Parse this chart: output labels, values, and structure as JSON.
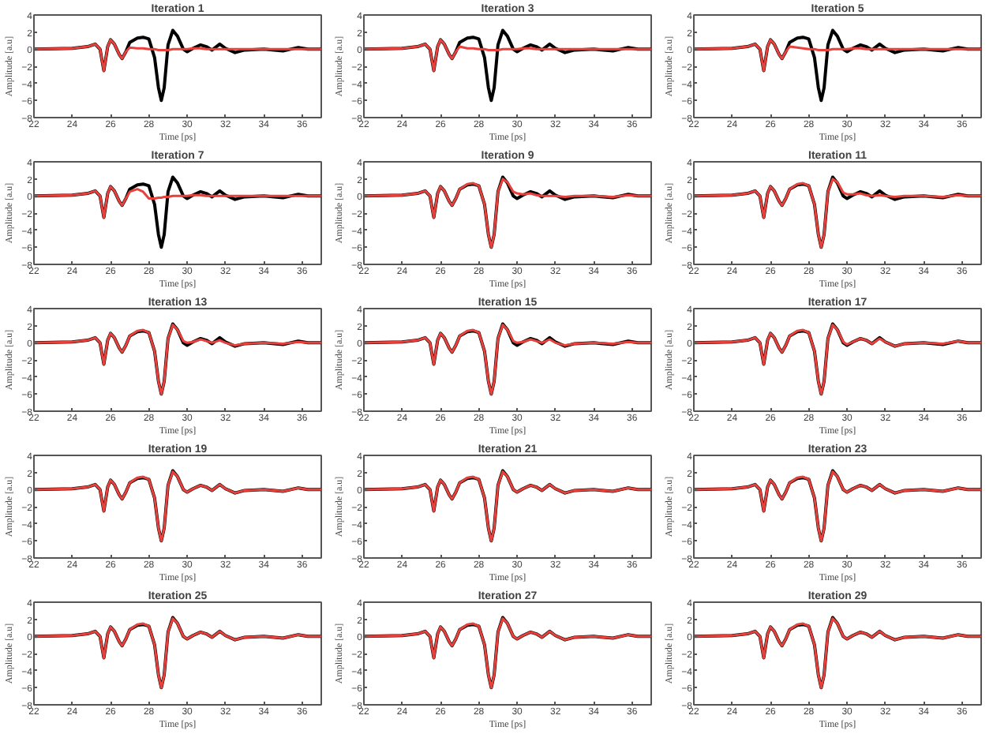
{
  "chart_data": [
    {
      "type": "line",
      "title": "Iteration 1",
      "xlabel": "Time [ps]",
      "ylabel": "Amplitude [a.u]",
      "xlim": [
        22,
        37
      ],
      "ylim": [
        -8,
        4
      ],
      "xticks": [
        22,
        24,
        26,
        28,
        30,
        32,
        34,
        36
      ],
      "yticks": [
        -8,
        -6,
        -4,
        -2,
        0,
        2,
        4
      ],
      "grid": false,
      "x": [
        22,
        24,
        24.8,
        25.2,
        25.45,
        25.65,
        25.85,
        26.0,
        26.2,
        26.45,
        26.6,
        26.8,
        27.0,
        27.4,
        27.7,
        28.0,
        28.3,
        28.5,
        28.65,
        28.8,
        29.0,
        29.25,
        29.5,
        29.8,
        30.0,
        30.3,
        30.7,
        31.0,
        31.3,
        31.7,
        32.0,
        32.5,
        33.0,
        34.0,
        35.0,
        35.8,
        36.3,
        37
      ],
      "series": [
        {
          "color": "#000000",
          "values": [
            0,
            0.1,
            0.3,
            0.6,
            0,
            -2.5,
            0.3,
            1.1,
            0.6,
            -0.6,
            -1.1,
            -0.3,
            0.8,
            1.3,
            1.4,
            1.2,
            -1.0,
            -4.5,
            -6.0,
            -4.5,
            0.5,
            2.2,
            1.5,
            0,
            -0.3,
            0.1,
            0.5,
            0.3,
            -0.1,
            0.6,
            0.1,
            -0.4,
            -0.1,
            0,
            -0.2,
            0.2,
            0,
            0
          ]
        },
        {
          "color": "#e8413c",
          "values": [
            0,
            0.1,
            0.3,
            0.6,
            0,
            -2.5,
            0.3,
            1.1,
            0.6,
            -0.6,
            -1.1,
            -0.3,
            0.2,
            0.1,
            0.1,
            0,
            0,
            -0.1,
            -0.1,
            -0.1,
            -0.1,
            0,
            0,
            0,
            0,
            0.1,
            0.1,
            0,
            0,
            0,
            0,
            0,
            0,
            0,
            0,
            0,
            0,
            0
          ]
        }
      ]
    },
    {
      "type": "line",
      "title": "Iteration 3",
      "xlabel": "Time [ps]",
      "ylabel": "Amplitude [a.u]",
      "xlim": [
        22,
        37
      ],
      "ylim": [
        -8,
        4
      ],
      "xticks": [
        22,
        24,
        26,
        28,
        30,
        32,
        34,
        36
      ],
      "yticks": [
        -8,
        -6,
        -4,
        -2,
        0,
        2,
        4
      ],
      "grid": false,
      "x": [
        22,
        24,
        24.8,
        25.2,
        25.45,
        25.65,
        25.85,
        26.0,
        26.2,
        26.45,
        26.6,
        26.8,
        27.0,
        27.4,
        27.7,
        28.0,
        28.3,
        28.5,
        28.65,
        28.8,
        29.0,
        29.25,
        29.5,
        29.8,
        30.0,
        30.3,
        30.7,
        31.0,
        31.3,
        31.7,
        32.0,
        32.5,
        33.0,
        34.0,
        35.0,
        35.8,
        36.3,
        37
      ],
      "series": [
        {
          "color": "#000000",
          "values": [
            0,
            0.1,
            0.3,
            0.6,
            0,
            -2.5,
            0.3,
            1.1,
            0.6,
            -0.6,
            -1.1,
            -0.3,
            0.8,
            1.3,
            1.4,
            1.2,
            -1.0,
            -4.5,
            -6.0,
            -4.5,
            0.5,
            2.2,
            1.5,
            0,
            -0.3,
            0.1,
            0.5,
            0.3,
            -0.1,
            0.6,
            0.1,
            -0.4,
            -0.1,
            0,
            -0.2,
            0.2,
            0,
            0
          ]
        },
        {
          "color": "#e8413c",
          "values": [
            0,
            0.1,
            0.3,
            0.6,
            0,
            -2.5,
            0.3,
            1.1,
            0.6,
            -0.6,
            -1.1,
            -0.3,
            0.3,
            0.1,
            0.1,
            0,
            0,
            -0.1,
            -0.1,
            -0.1,
            -0.1,
            0,
            0,
            0,
            0,
            0.1,
            0.1,
            0,
            0,
            0,
            0,
            0,
            0,
            0,
            0,
            0,
            0,
            0
          ]
        }
      ]
    },
    {
      "type": "line",
      "title": "Iteration 5",
      "xlabel": "Time [ps]",
      "ylabel": "Amplitude [a.u]",
      "xlim": [
        22,
        37
      ],
      "ylim": [
        -8,
        4
      ],
      "xticks": [
        22,
        24,
        26,
        28,
        30,
        32,
        34,
        36
      ],
      "yticks": [
        -8,
        -6,
        -4,
        -2,
        0,
        2,
        4
      ],
      "grid": false,
      "x": [
        22,
        24,
        24.8,
        25.2,
        25.45,
        25.65,
        25.85,
        26.0,
        26.2,
        26.45,
        26.6,
        26.8,
        27.0,
        27.4,
        27.7,
        28.0,
        28.3,
        28.5,
        28.65,
        28.8,
        29.0,
        29.25,
        29.5,
        29.8,
        30.0,
        30.3,
        30.7,
        31.0,
        31.3,
        31.7,
        32.0,
        32.5,
        33.0,
        34.0,
        35.0,
        35.8,
        36.3,
        37
      ],
      "series": [
        {
          "color": "#000000",
          "values": [
            0,
            0.1,
            0.3,
            0.6,
            0,
            -2.5,
            0.3,
            1.1,
            0.6,
            -0.6,
            -1.1,
            -0.3,
            0.8,
            1.3,
            1.4,
            1.2,
            -1.0,
            -4.5,
            -6.0,
            -4.5,
            0.5,
            2.2,
            1.5,
            0,
            -0.3,
            0.1,
            0.5,
            0.3,
            -0.1,
            0.6,
            0.1,
            -0.4,
            -0.1,
            0,
            -0.2,
            0.2,
            0,
            0
          ]
        },
        {
          "color": "#e8413c",
          "values": [
            0,
            0.1,
            0.3,
            0.6,
            0,
            -2.5,
            0.3,
            1.1,
            0.6,
            -0.6,
            -1.1,
            -0.3,
            0.3,
            0.2,
            0.1,
            0,
            0,
            -0.1,
            -0.1,
            -0.1,
            -0.1,
            0,
            0,
            0,
            0,
            0.1,
            0.1,
            0,
            0,
            0,
            0,
            0,
            0,
            0,
            0,
            0,
            0,
            0
          ]
        }
      ]
    },
    {
      "type": "line",
      "title": "Iteration 7",
      "xlabel": "Time [ps]",
      "ylabel": "Amplitude [a.u]",
      "xlim": [
        22,
        37
      ],
      "ylim": [
        -8,
        4
      ],
      "xticks": [
        22,
        24,
        26,
        28,
        30,
        32,
        34,
        36
      ],
      "yticks": [
        -8,
        -6,
        -4,
        -2,
        0,
        2,
        4
      ],
      "grid": false,
      "x": [
        22,
        24,
        24.8,
        25.2,
        25.45,
        25.65,
        25.85,
        26.0,
        26.2,
        26.45,
        26.6,
        26.8,
        27.0,
        27.4,
        27.7,
        28.0,
        28.3,
        28.5,
        28.65,
        28.8,
        29.0,
        29.25,
        29.5,
        29.8,
        30.0,
        30.3,
        30.7,
        31.0,
        31.3,
        31.7,
        32.0,
        32.5,
        33.0,
        34.0,
        35.0,
        35.8,
        36.3,
        37
      ],
      "series": [
        {
          "color": "#000000",
          "values": [
            0,
            0.1,
            0.3,
            0.6,
            0,
            -2.5,
            0.3,
            1.1,
            0.6,
            -0.6,
            -1.1,
            -0.3,
            0.8,
            1.3,
            1.4,
            1.2,
            -1.0,
            -4.5,
            -6.0,
            -4.5,
            0.5,
            2.2,
            1.5,
            0,
            -0.3,
            0.1,
            0.5,
            0.3,
            -0.1,
            0.6,
            0.1,
            -0.4,
            -0.1,
            0,
            -0.2,
            0.2,
            0,
            0
          ]
        },
        {
          "color": "#e8413c",
          "values": [
            0,
            0.1,
            0.3,
            0.6,
            0,
            -2.5,
            0.3,
            1.1,
            0.6,
            -0.6,
            -1.1,
            -0.3,
            0.5,
            0.8,
            0.5,
            -0.3,
            -0.3,
            -0.2,
            -0.2,
            -0.1,
            -0.1,
            0,
            0,
            0,
            0,
            0.1,
            0.1,
            0,
            0,
            0,
            0,
            0,
            0,
            0,
            0,
            0,
            0,
            0
          ]
        }
      ]
    },
    {
      "type": "line",
      "title": "Iteration 9",
      "xlabel": "Time [ps]",
      "ylabel": "Amplitude [a.u]",
      "xlim": [
        22,
        37
      ],
      "ylim": [
        -8,
        4
      ],
      "xticks": [
        22,
        24,
        26,
        28,
        30,
        32,
        34,
        36
      ],
      "yticks": [
        -8,
        -6,
        -4,
        -2,
        0,
        2,
        4
      ],
      "grid": false,
      "x": [
        22,
        24,
        24.8,
        25.2,
        25.45,
        25.65,
        25.85,
        26.0,
        26.2,
        26.45,
        26.6,
        26.8,
        27.0,
        27.4,
        27.7,
        28.0,
        28.3,
        28.5,
        28.65,
        28.8,
        29.0,
        29.25,
        29.5,
        29.8,
        30.0,
        30.3,
        30.7,
        31.0,
        31.3,
        31.7,
        32.0,
        32.5,
        33.0,
        34.0,
        35.0,
        35.8,
        36.3,
        37
      ],
      "series": [
        {
          "color": "#000000",
          "values": [
            0,
            0.1,
            0.3,
            0.6,
            0,
            -2.5,
            0.3,
            1.1,
            0.6,
            -0.6,
            -1.1,
            -0.3,
            0.8,
            1.3,
            1.4,
            1.2,
            -1.0,
            -4.5,
            -6.0,
            -4.5,
            0.5,
            2.2,
            1.5,
            0,
            -0.3,
            0.1,
            0.5,
            0.3,
            -0.1,
            0.6,
            0.1,
            -0.4,
            -0.1,
            0,
            -0.2,
            0.2,
            0,
            0
          ]
        },
        {
          "color": "#e8413c",
          "values": [
            0,
            0.1,
            0.3,
            0.6,
            0,
            -2.5,
            0.3,
            1.1,
            0.6,
            -0.6,
            -1.1,
            -0.3,
            0.8,
            1.4,
            1.5,
            1.2,
            -1.0,
            -4.5,
            -6.0,
            -4.5,
            0.5,
            2.0,
            1.6,
            0.5,
            0.3,
            0.2,
            0.3,
            0.1,
            0,
            0,
            0,
            -0.1,
            0,
            0,
            -0.1,
            0.1,
            0,
            0
          ]
        }
      ]
    },
    {
      "type": "line",
      "title": "Iteration 11",
      "xlabel": "Time [ps]",
      "ylabel": "Amplitude [a.u]",
      "xlim": [
        22,
        37
      ],
      "ylim": [
        -8,
        4
      ],
      "xticks": [
        22,
        24,
        26,
        28,
        30,
        32,
        34,
        36
      ],
      "yticks": [
        -8,
        -6,
        -4,
        -2,
        0,
        2,
        4
      ],
      "grid": false,
      "x": [
        22,
        24,
        24.8,
        25.2,
        25.45,
        25.65,
        25.85,
        26.0,
        26.2,
        26.45,
        26.6,
        26.8,
        27.0,
        27.4,
        27.7,
        28.0,
        28.3,
        28.5,
        28.65,
        28.8,
        29.0,
        29.25,
        29.5,
        29.8,
        30.0,
        30.3,
        30.7,
        31.0,
        31.3,
        31.7,
        32.0,
        32.5,
        33.0,
        34.0,
        35.0,
        35.8,
        36.3,
        37
      ],
      "series": [
        {
          "color": "#000000",
          "values": [
            0,
            0.1,
            0.3,
            0.6,
            0,
            -2.5,
            0.3,
            1.1,
            0.6,
            -0.6,
            -1.1,
            -0.3,
            0.8,
            1.3,
            1.4,
            1.2,
            -1.0,
            -4.5,
            -6.0,
            -4.5,
            0.5,
            2.2,
            1.5,
            0,
            -0.3,
            0.1,
            0.5,
            0.3,
            -0.1,
            0.6,
            0.1,
            -0.4,
            -0.1,
            0,
            -0.2,
            0.2,
            0,
            0
          ]
        },
        {
          "color": "#e8413c",
          "values": [
            0,
            0.1,
            0.3,
            0.6,
            0,
            -2.5,
            0.3,
            1.1,
            0.6,
            -0.6,
            -1.1,
            -0.3,
            0.8,
            1.4,
            1.5,
            1.2,
            -1.0,
            -4.5,
            -6.0,
            -4.5,
            0.5,
            2.0,
            1.6,
            0.4,
            0.2,
            0.2,
            0.3,
            0.1,
            0,
            0.1,
            0,
            -0.1,
            0,
            0,
            -0.1,
            0.1,
            0,
            0
          ]
        }
      ]
    },
    {
      "type": "line",
      "title": "Iteration 13",
      "xlabel": "Time [ps]",
      "ylabel": "Amplitude [a.u]",
      "xlim": [
        22,
        37
      ],
      "ylim": [
        -8,
        4
      ],
      "xticks": [
        22,
        24,
        26,
        28,
        30,
        32,
        34,
        36
      ],
      "yticks": [
        -8,
        -6,
        -4,
        -2,
        0,
        2,
        4
      ],
      "grid": false,
      "x": [
        22,
        24,
        24.8,
        25.2,
        25.45,
        25.65,
        25.85,
        26.0,
        26.2,
        26.45,
        26.6,
        26.8,
        27.0,
        27.4,
        27.7,
        28.0,
        28.3,
        28.5,
        28.65,
        28.8,
        29.0,
        29.25,
        29.5,
        29.8,
        30.0,
        30.3,
        30.7,
        31.0,
        31.3,
        31.7,
        32.0,
        32.5,
        33.0,
        34.0,
        35.0,
        35.8,
        36.3,
        37
      ],
      "series": [
        {
          "color": "#000000",
          "values": [
            0,
            0.1,
            0.3,
            0.6,
            0,
            -2.5,
            0.3,
            1.1,
            0.6,
            -0.6,
            -1.1,
            -0.3,
            0.8,
            1.3,
            1.4,
            1.2,
            -1.0,
            -4.5,
            -6.0,
            -4.5,
            0.5,
            2.2,
            1.5,
            0,
            -0.3,
            0.1,
            0.5,
            0.3,
            -0.1,
            0.6,
            0.1,
            -0.4,
            -0.1,
            0,
            -0.2,
            0.2,
            0,
            0
          ]
        },
        {
          "color": "#e8413c",
          "values": [
            0,
            0.1,
            0.3,
            0.6,
            0,
            -2.5,
            0.3,
            1.1,
            0.6,
            -0.6,
            -1.1,
            -0.3,
            0.8,
            1.4,
            1.5,
            1.2,
            -1.0,
            -4.5,
            -6.0,
            -4.5,
            0.5,
            2.1,
            1.5,
            0.2,
            0,
            0.1,
            0.4,
            0.2,
            0,
            0.3,
            0,
            -0.3,
            -0.1,
            0,
            -0.1,
            0.1,
            0,
            0
          ]
        }
      ]
    },
    {
      "type": "line",
      "title": "Iteration 15",
      "xlabel": "Time [ps]",
      "ylabel": "Amplitude [a.u]",
      "xlim": [
        22,
        37
      ],
      "ylim": [
        -8,
        4
      ],
      "xticks": [
        22,
        24,
        26,
        28,
        30,
        32,
        34,
        36
      ],
      "yticks": [
        -8,
        -6,
        -4,
        -2,
        0,
        2,
        4
      ],
      "grid": false,
      "x": [
        22,
        24,
        24.8,
        25.2,
        25.45,
        25.65,
        25.85,
        26.0,
        26.2,
        26.45,
        26.6,
        26.8,
        27.0,
        27.4,
        27.7,
        28.0,
        28.3,
        28.5,
        28.65,
        28.8,
        29.0,
        29.25,
        29.5,
        29.8,
        30.0,
        30.3,
        30.7,
        31.0,
        31.3,
        31.7,
        32.0,
        32.5,
        33.0,
        34.0,
        35.0,
        35.8,
        36.3,
        37
      ],
      "series": [
        {
          "color": "#000000",
          "values": [
            0,
            0.1,
            0.3,
            0.6,
            0,
            -2.5,
            0.3,
            1.1,
            0.6,
            -0.6,
            -1.1,
            -0.3,
            0.8,
            1.3,
            1.4,
            1.2,
            -1.0,
            -4.5,
            -6.0,
            -4.5,
            0.5,
            2.2,
            1.5,
            0,
            -0.3,
            0.1,
            0.5,
            0.3,
            -0.1,
            0.6,
            0.1,
            -0.4,
            -0.1,
            0,
            -0.2,
            0.2,
            0,
            0
          ]
        },
        {
          "color": "#e8413c",
          "values": [
            0,
            0.1,
            0.3,
            0.6,
            0,
            -2.5,
            0.3,
            1.1,
            0.6,
            -0.6,
            -1.1,
            -0.3,
            0.8,
            1.4,
            1.5,
            1.2,
            -1.0,
            -4.5,
            -6.0,
            -4.5,
            0.5,
            2.1,
            1.5,
            0.2,
            0,
            0.1,
            0.4,
            0.2,
            0,
            0.4,
            0,
            -0.3,
            -0.1,
            0,
            -0.1,
            0.1,
            0,
            0
          ]
        }
      ]
    },
    {
      "type": "line",
      "title": "Iteration 17",
      "xlabel": "Time [ps]",
      "ylabel": "Amplitude [a.u]",
      "xlim": [
        22,
        37
      ],
      "ylim": [
        -8,
        4
      ],
      "xticks": [
        22,
        24,
        26,
        28,
        30,
        32,
        34,
        36
      ],
      "yticks": [
        -8,
        -6,
        -4,
        -2,
        0,
        2,
        4
      ],
      "grid": false,
      "x": [
        22,
        24,
        24.8,
        25.2,
        25.45,
        25.65,
        25.85,
        26.0,
        26.2,
        26.45,
        26.6,
        26.8,
        27.0,
        27.4,
        27.7,
        28.0,
        28.3,
        28.5,
        28.65,
        28.8,
        29.0,
        29.25,
        29.5,
        29.8,
        30.0,
        30.3,
        30.7,
        31.0,
        31.3,
        31.7,
        32.0,
        32.5,
        33.0,
        34.0,
        35.0,
        35.8,
        36.3,
        37
      ],
      "series": [
        {
          "color": "#000000",
          "values": [
            0,
            0.1,
            0.3,
            0.6,
            0,
            -2.5,
            0.3,
            1.1,
            0.6,
            -0.6,
            -1.1,
            -0.3,
            0.8,
            1.3,
            1.4,
            1.2,
            -1.0,
            -4.5,
            -6.0,
            -4.5,
            0.5,
            2.2,
            1.5,
            0,
            -0.3,
            0.1,
            0.5,
            0.3,
            -0.1,
            0.6,
            0.1,
            -0.4,
            -0.1,
            0,
            -0.2,
            0.2,
            0,
            0
          ]
        },
        {
          "color": "#e8413c",
          "values": [
            0,
            0.1,
            0.3,
            0.6,
            0,
            -2.5,
            0.3,
            1.1,
            0.6,
            -0.6,
            -1.1,
            -0.3,
            0.8,
            1.4,
            1.5,
            1.2,
            -1.0,
            -4.5,
            -6.0,
            -4.5,
            0.5,
            2.1,
            1.5,
            0.1,
            -0.2,
            0.1,
            0.5,
            0.3,
            -0.1,
            0.5,
            0.1,
            -0.4,
            -0.1,
            0,
            -0.1,
            0.2,
            0,
            0
          ]
        }
      ]
    },
    {
      "type": "line",
      "title": "Iteration 19",
      "xlabel": "Time [ps]",
      "ylabel": "Amplitude [a.u]",
      "xlim": [
        22,
        37
      ],
      "ylim": [
        -8,
        4
      ],
      "xticks": [
        22,
        24,
        26,
        28,
        30,
        32,
        34,
        36
      ],
      "yticks": [
        -8,
        -6,
        -4,
        -2,
        0,
        2,
        4
      ],
      "grid": false,
      "x": [
        22,
        24,
        24.8,
        25.2,
        25.45,
        25.65,
        25.85,
        26.0,
        26.2,
        26.45,
        26.6,
        26.8,
        27.0,
        27.4,
        27.7,
        28.0,
        28.3,
        28.5,
        28.65,
        28.8,
        29.0,
        29.25,
        29.5,
        29.8,
        30.0,
        30.3,
        30.7,
        31.0,
        31.3,
        31.7,
        32.0,
        32.5,
        33.0,
        34.0,
        35.0,
        35.8,
        36.3,
        37
      ],
      "series": [
        {
          "color": "#000000",
          "values": [
            0,
            0.1,
            0.3,
            0.6,
            0,
            -2.5,
            0.3,
            1.1,
            0.6,
            -0.6,
            -1.1,
            -0.3,
            0.8,
            1.3,
            1.4,
            1.2,
            -1.0,
            -4.5,
            -6.0,
            -4.5,
            0.5,
            2.2,
            1.5,
            0,
            -0.3,
            0.1,
            0.5,
            0.3,
            -0.1,
            0.6,
            0.1,
            -0.4,
            -0.1,
            0,
            -0.2,
            0.2,
            0,
            0
          ]
        },
        {
          "color": "#e8413c",
          "values": [
            0,
            0.1,
            0.3,
            0.6,
            0,
            -2.5,
            0.3,
            1.1,
            0.6,
            -0.6,
            -1.1,
            -0.3,
            0.8,
            1.4,
            1.5,
            1.2,
            -1.0,
            -4.5,
            -6.0,
            -4.5,
            0.5,
            2.1,
            1.5,
            0,
            -0.3,
            0.1,
            0.5,
            0.3,
            -0.1,
            0.6,
            0.1,
            -0.4,
            -0.1,
            0,
            -0.2,
            0.2,
            0,
            0
          ]
        }
      ]
    },
    {
      "type": "line",
      "title": "Iteration 21",
      "xlabel": "Time [ps]",
      "ylabel": "Amplitude [a.u]",
      "xlim": [
        22,
        37
      ],
      "ylim": [
        -8,
        4
      ],
      "xticks": [
        22,
        24,
        26,
        28,
        30,
        32,
        34,
        36
      ],
      "yticks": [
        -8,
        -6,
        -4,
        -2,
        0,
        2,
        4
      ],
      "grid": false,
      "x": [
        22,
        24,
        24.8,
        25.2,
        25.45,
        25.65,
        25.85,
        26.0,
        26.2,
        26.45,
        26.6,
        26.8,
        27.0,
        27.4,
        27.7,
        28.0,
        28.3,
        28.5,
        28.65,
        28.8,
        29.0,
        29.25,
        29.5,
        29.8,
        30.0,
        30.3,
        30.7,
        31.0,
        31.3,
        31.7,
        32.0,
        32.5,
        33.0,
        34.0,
        35.0,
        35.8,
        36.3,
        37
      ],
      "series": [
        {
          "color": "#000000",
          "values": [
            0,
            0.1,
            0.3,
            0.6,
            0,
            -2.5,
            0.3,
            1.1,
            0.6,
            -0.6,
            -1.1,
            -0.3,
            0.8,
            1.3,
            1.4,
            1.2,
            -1.0,
            -4.5,
            -6.0,
            -4.5,
            0.5,
            2.2,
            1.5,
            0,
            -0.3,
            0.1,
            0.5,
            0.3,
            -0.1,
            0.6,
            0.1,
            -0.4,
            -0.1,
            0,
            -0.2,
            0.2,
            0,
            0
          ]
        },
        {
          "color": "#e8413c",
          "values": [
            0,
            0.1,
            0.3,
            0.6,
            0,
            -2.5,
            0.3,
            1.1,
            0.6,
            -0.6,
            -1.1,
            -0.3,
            0.8,
            1.4,
            1.5,
            1.2,
            -1.0,
            -4.5,
            -6.0,
            -4.5,
            0.5,
            2.1,
            1.5,
            0,
            -0.3,
            0.1,
            0.5,
            0.3,
            -0.1,
            0.6,
            0.1,
            -0.4,
            -0.1,
            0,
            -0.2,
            0.2,
            0,
            0
          ]
        }
      ]
    },
    {
      "type": "line",
      "title": "Iteration 23",
      "xlabel": "Time [ps]",
      "ylabel": "Amplitude [a.u]",
      "xlim": [
        22,
        37
      ],
      "ylim": [
        -8,
        4
      ],
      "xticks": [
        22,
        24,
        26,
        28,
        30,
        32,
        34,
        36
      ],
      "yticks": [
        -8,
        -6,
        -4,
        -2,
        0,
        2,
        4
      ],
      "grid": false,
      "x": [
        22,
        24,
        24.8,
        25.2,
        25.45,
        25.65,
        25.85,
        26.0,
        26.2,
        26.45,
        26.6,
        26.8,
        27.0,
        27.4,
        27.7,
        28.0,
        28.3,
        28.5,
        28.65,
        28.8,
        29.0,
        29.25,
        29.5,
        29.8,
        30.0,
        30.3,
        30.7,
        31.0,
        31.3,
        31.7,
        32.0,
        32.5,
        33.0,
        34.0,
        35.0,
        35.8,
        36.3,
        37
      ],
      "series": [
        {
          "color": "#000000",
          "values": [
            0,
            0.1,
            0.3,
            0.6,
            0,
            -2.5,
            0.3,
            1.1,
            0.6,
            -0.6,
            -1.1,
            -0.3,
            0.8,
            1.3,
            1.4,
            1.2,
            -1.0,
            -4.5,
            -6.0,
            -4.5,
            0.5,
            2.2,
            1.5,
            0,
            -0.3,
            0.1,
            0.5,
            0.3,
            -0.1,
            0.6,
            0.1,
            -0.4,
            -0.1,
            0,
            -0.2,
            0.2,
            0,
            0
          ]
        },
        {
          "color": "#e8413c",
          "values": [
            0,
            0.1,
            0.3,
            0.6,
            0,
            -2.5,
            0.3,
            1.1,
            0.6,
            -0.6,
            -1.1,
            -0.3,
            0.8,
            1.4,
            1.5,
            1.2,
            -1.0,
            -4.5,
            -6.0,
            -4.5,
            0.5,
            2.1,
            1.5,
            0,
            -0.3,
            0.1,
            0.5,
            0.3,
            -0.1,
            0.6,
            0.1,
            -0.4,
            -0.1,
            0,
            -0.2,
            0.2,
            0,
            0
          ]
        }
      ]
    },
    {
      "type": "line",
      "title": "Iteration 25",
      "xlabel": "Time [ps]",
      "ylabel": "Amplitude [a.u]",
      "xlim": [
        22,
        37
      ],
      "ylim": [
        -8,
        4
      ],
      "xticks": [
        22,
        24,
        26,
        28,
        30,
        32,
        34,
        36
      ],
      "yticks": [
        -8,
        -6,
        -4,
        -2,
        0,
        2,
        4
      ],
      "grid": false,
      "x": [
        22,
        24,
        24.8,
        25.2,
        25.45,
        25.65,
        25.85,
        26.0,
        26.2,
        26.45,
        26.6,
        26.8,
        27.0,
        27.4,
        27.7,
        28.0,
        28.3,
        28.5,
        28.65,
        28.8,
        29.0,
        29.25,
        29.5,
        29.8,
        30.0,
        30.3,
        30.7,
        31.0,
        31.3,
        31.7,
        32.0,
        32.5,
        33.0,
        34.0,
        35.0,
        35.8,
        36.3,
        37
      ],
      "series": [
        {
          "color": "#000000",
          "values": [
            0,
            0.1,
            0.3,
            0.6,
            0,
            -2.5,
            0.3,
            1.1,
            0.6,
            -0.6,
            -1.1,
            -0.3,
            0.8,
            1.3,
            1.4,
            1.2,
            -1.0,
            -4.5,
            -6.0,
            -4.5,
            0.5,
            2.2,
            1.5,
            0,
            -0.3,
            0.1,
            0.5,
            0.3,
            -0.1,
            0.6,
            0.1,
            -0.4,
            -0.1,
            0,
            -0.2,
            0.2,
            0,
            0
          ]
        },
        {
          "color": "#e8413c",
          "values": [
            0,
            0.1,
            0.3,
            0.6,
            0,
            -2.5,
            0.3,
            1.1,
            0.6,
            -0.6,
            -1.1,
            -0.3,
            0.8,
            1.4,
            1.5,
            1.2,
            -1.0,
            -4.5,
            -6.0,
            -4.5,
            0.5,
            2.1,
            1.5,
            0,
            -0.3,
            0.1,
            0.5,
            0.3,
            -0.1,
            0.6,
            0.1,
            -0.4,
            -0.1,
            0,
            -0.2,
            0.2,
            0,
            0
          ]
        }
      ]
    },
    {
      "type": "line",
      "title": "Iteration 27",
      "xlabel": "Time [ps]",
      "ylabel": "Amplitude [a.u]",
      "xlim": [
        22,
        37
      ],
      "ylim": [
        -8,
        4
      ],
      "xticks": [
        22,
        24,
        26,
        28,
        30,
        32,
        34,
        36
      ],
      "yticks": [
        -8,
        -6,
        -4,
        -2,
        0,
        2,
        4
      ],
      "grid": false,
      "x": [
        22,
        24,
        24.8,
        25.2,
        25.45,
        25.65,
        25.85,
        26.0,
        26.2,
        26.45,
        26.6,
        26.8,
        27.0,
        27.4,
        27.7,
        28.0,
        28.3,
        28.5,
        28.65,
        28.8,
        29.0,
        29.25,
        29.5,
        29.8,
        30.0,
        30.3,
        30.7,
        31.0,
        31.3,
        31.7,
        32.0,
        32.5,
        33.0,
        34.0,
        35.0,
        35.8,
        36.3,
        37
      ],
      "series": [
        {
          "color": "#000000",
          "values": [
            0,
            0.1,
            0.3,
            0.6,
            0,
            -2.5,
            0.3,
            1.1,
            0.6,
            -0.6,
            -1.1,
            -0.3,
            0.8,
            1.3,
            1.4,
            1.2,
            -1.0,
            -4.5,
            -6.0,
            -4.5,
            0.5,
            2.2,
            1.5,
            0,
            -0.3,
            0.1,
            0.5,
            0.3,
            -0.1,
            0.6,
            0.1,
            -0.4,
            -0.1,
            0,
            -0.2,
            0.2,
            0,
            0
          ]
        },
        {
          "color": "#e8413c",
          "values": [
            0,
            0.1,
            0.3,
            0.6,
            0,
            -2.5,
            0.3,
            1.1,
            0.6,
            -0.6,
            -1.1,
            -0.3,
            0.8,
            1.4,
            1.5,
            1.2,
            -1.0,
            -4.5,
            -6.0,
            -4.5,
            0.5,
            2.1,
            1.5,
            0,
            -0.3,
            0.1,
            0.5,
            0.3,
            -0.1,
            0.6,
            0.1,
            -0.4,
            -0.1,
            0,
            -0.2,
            0.2,
            0,
            0
          ]
        }
      ]
    },
    {
      "type": "line",
      "title": "Iteration 29",
      "xlabel": "Time [ps]",
      "ylabel": "Amplitude [a.u]",
      "xlim": [
        22,
        37
      ],
      "ylim": [
        -8,
        4
      ],
      "xticks": [
        22,
        24,
        26,
        28,
        30,
        32,
        34,
        36
      ],
      "yticks": [
        -8,
        -6,
        -4,
        -2,
        0,
        2,
        4
      ],
      "grid": false,
      "x": [
        22,
        24,
        24.8,
        25.2,
        25.45,
        25.65,
        25.85,
        26.0,
        26.2,
        26.45,
        26.6,
        26.8,
        27.0,
        27.4,
        27.7,
        28.0,
        28.3,
        28.5,
        28.65,
        28.8,
        29.0,
        29.25,
        29.5,
        29.8,
        30.0,
        30.3,
        30.7,
        31.0,
        31.3,
        31.7,
        32.0,
        32.5,
        33.0,
        34.0,
        35.0,
        35.8,
        36.3,
        37
      ],
      "series": [
        {
          "color": "#000000",
          "values": [
            0,
            0.1,
            0.3,
            0.6,
            0,
            -2.5,
            0.3,
            1.1,
            0.6,
            -0.6,
            -1.1,
            -0.3,
            0.8,
            1.3,
            1.4,
            1.2,
            -1.0,
            -4.5,
            -6.0,
            -4.5,
            0.5,
            2.2,
            1.5,
            0,
            -0.3,
            0.1,
            0.5,
            0.3,
            -0.1,
            0.6,
            0.1,
            -0.4,
            -0.1,
            0,
            -0.2,
            0.2,
            0,
            0
          ]
        },
        {
          "color": "#e8413c",
          "values": [
            0,
            0.1,
            0.3,
            0.6,
            0,
            -2.5,
            0.3,
            1.1,
            0.6,
            -0.6,
            -1.1,
            -0.3,
            0.8,
            1.4,
            1.5,
            1.2,
            -1.0,
            -4.5,
            -6.0,
            -4.5,
            0.5,
            2.1,
            1.5,
            0,
            -0.3,
            0.1,
            0.5,
            0.3,
            -0.1,
            0.6,
            0.1,
            -0.4,
            -0.1,
            0,
            -0.2,
            0.2,
            0,
            0
          ]
        }
      ]
    }
  ]
}
